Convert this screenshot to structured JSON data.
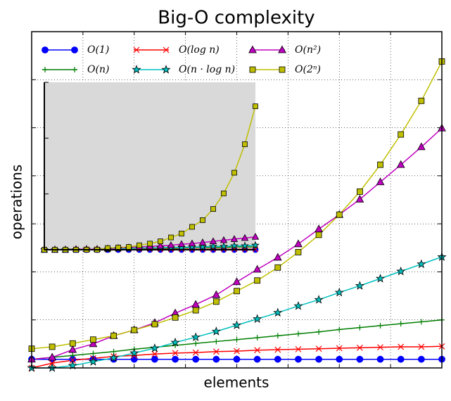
{
  "chart_data": [
    {
      "type": "line",
      "title": "Big-O complexity",
      "x_label": "elements",
      "y_label": "operations",
      "x": [
        0,
        1,
        2,
        3,
        4,
        5,
        6,
        7,
        8,
        9,
        10,
        11,
        12,
        13,
        14,
        15,
        16,
        17,
        18,
        19,
        20
      ],
      "xlim": [
        0,
        20
      ],
      "xticks": [
        0,
        2.5,
        5,
        7.5,
        10,
        12.5,
        15,
        17.5,
        20
      ],
      "ylim": [
        0,
        7
      ],
      "yticks": [
        0,
        1,
        2,
        3,
        4,
        5,
        6,
        7
      ],
      "grid": true,
      "legend": "top",
      "series": [
        {
          "name": "O(1)",
          "color": "#0000ff",
          "marker": "circle",
          "values": [
            0.18,
            0.18,
            0.18,
            0.18,
            0.18,
            0.18,
            0.18,
            0.18,
            0.18,
            0.18,
            0.18,
            0.18,
            0.18,
            0.18,
            0.18,
            0.18,
            0.18,
            0.18,
            0.18,
            0.18,
            0.18
          ]
        },
        {
          "name": "O(n)",
          "color": "#007f00",
          "marker": "plus",
          "values": [
            0.18,
            0.22,
            0.26,
            0.3,
            0.34,
            0.39,
            0.43,
            0.47,
            0.51,
            0.55,
            0.59,
            0.63,
            0.67,
            0.71,
            0.75,
            0.8,
            0.84,
            0.88,
            0.92,
            0.96,
            1.0
          ]
        },
        {
          "name": "O(log n)",
          "color": "#ff0000",
          "marker": "x",
          "values": [
            0,
            0.1,
            0.16,
            0.2,
            0.24,
            0.26,
            0.29,
            0.31,
            0.32,
            0.34,
            0.35,
            0.37,
            0.38,
            0.39,
            0.4,
            0.41,
            0.42,
            0.43,
            0.44,
            0.44,
            0.45
          ]
        },
        {
          "name": "O(n · log n)",
          "color": "#00bfbf",
          "marker": "star",
          "values": [
            0,
            0,
            0.05,
            0.13,
            0.21,
            0.31,
            0.41,
            0.53,
            0.64,
            0.76,
            0.89,
            1.02,
            1.15,
            1.29,
            1.42,
            1.57,
            1.71,
            1.86,
            2.01,
            2.16,
            2.31
          ]
        },
        {
          "name": "O(n²)",
          "color": "#bf00bf",
          "marker": "triangle",
          "values": [
            0.18,
            0.22,
            0.38,
            0.5,
            0.67,
            0.79,
            0.94,
            1.14,
            1.32,
            1.52,
            1.79,
            2.05,
            2.3,
            2.58,
            2.89,
            3.19,
            3.51,
            3.87,
            4.23,
            4.6,
            4.99
          ]
        },
        {
          "name": "O(2ⁿ)",
          "color": "#bfbf00",
          "marker": "square",
          "values": [
            0.4,
            0.44,
            0.51,
            0.59,
            0.67,
            0.79,
            0.91,
            1.05,
            1.2,
            1.38,
            1.6,
            1.82,
            2.09,
            2.41,
            2.77,
            3.19,
            3.67,
            4.23,
            4.86,
            5.56,
            6.38
          ]
        }
      ]
    },
    {
      "type": "line",
      "background": "#d9d9d9",
      "x": [
        0,
        1,
        2,
        3,
        4,
        5,
        6,
        7,
        8,
        9,
        10,
        11,
        12,
        13,
        14,
        15,
        16,
        17,
        18,
        19,
        20
      ],
      "xlim": [
        0,
        20
      ],
      "ylim": [
        0,
        3
      ],
      "yticks": [
        0,
        1,
        2,
        3
      ],
      "series": [
        {
          "color": "#0000ff",
          "marker": "circle",
          "values": [
            0,
            0,
            0,
            0,
            0,
            0,
            0,
            0,
            0,
            0,
            0,
            0,
            0,
            0,
            0,
            0,
            0,
            0,
            0,
            0,
            0
          ]
        },
        {
          "color": "#007f00",
          "marker": "plus",
          "values": [
            0,
            0,
            0.01,
            0.01,
            0.01,
            0.01,
            0.02,
            0.02,
            0.02,
            0.02,
            0.03,
            0.03,
            0.03,
            0.03,
            0.04,
            0.04,
            0.04,
            0.04,
            0.05,
            0.05,
            0.05
          ]
        },
        {
          "color": "#ff0000",
          "marker": "x",
          "values": [
            0,
            0,
            0,
            0.01,
            0.01,
            0.01,
            0.01,
            0.01,
            0.01,
            0.01,
            0.01,
            0.01,
            0.01,
            0.01,
            0.01,
            0.01,
            0.01,
            0.01,
            0.01,
            0.01,
            0.01
          ]
        },
        {
          "color": "#00bfbf",
          "marker": "star",
          "values": [
            0,
            0,
            0,
            0,
            0.01,
            0.01,
            0.01,
            0.02,
            0.02,
            0.03,
            0.03,
            0.04,
            0.04,
            0.04,
            0.05,
            0.05,
            0.06,
            0.06,
            0.07,
            0.07,
            0.08
          ]
        },
        {
          "color": "#bf00bf",
          "marker": "triangle",
          "values": [
            0,
            0,
            0,
            0.01,
            0.01,
            0.01,
            0.02,
            0.03,
            0.04,
            0.05,
            0.06,
            0.07,
            0.08,
            0.1,
            0.11,
            0.13,
            0.15,
            0.17,
            0.19,
            0.21,
            0.23
          ]
        },
        {
          "color": "#bfbf00",
          "marker": "square",
          "values": [
            0,
            0,
            0,
            0,
            0,
            0,
            0.03,
            0.04,
            0.05,
            0.08,
            0.11,
            0.15,
            0.22,
            0.29,
            0.41,
            0.53,
            0.73,
            1.01,
            1.38,
            1.89,
            2.57
          ]
        }
      ]
    }
  ]
}
